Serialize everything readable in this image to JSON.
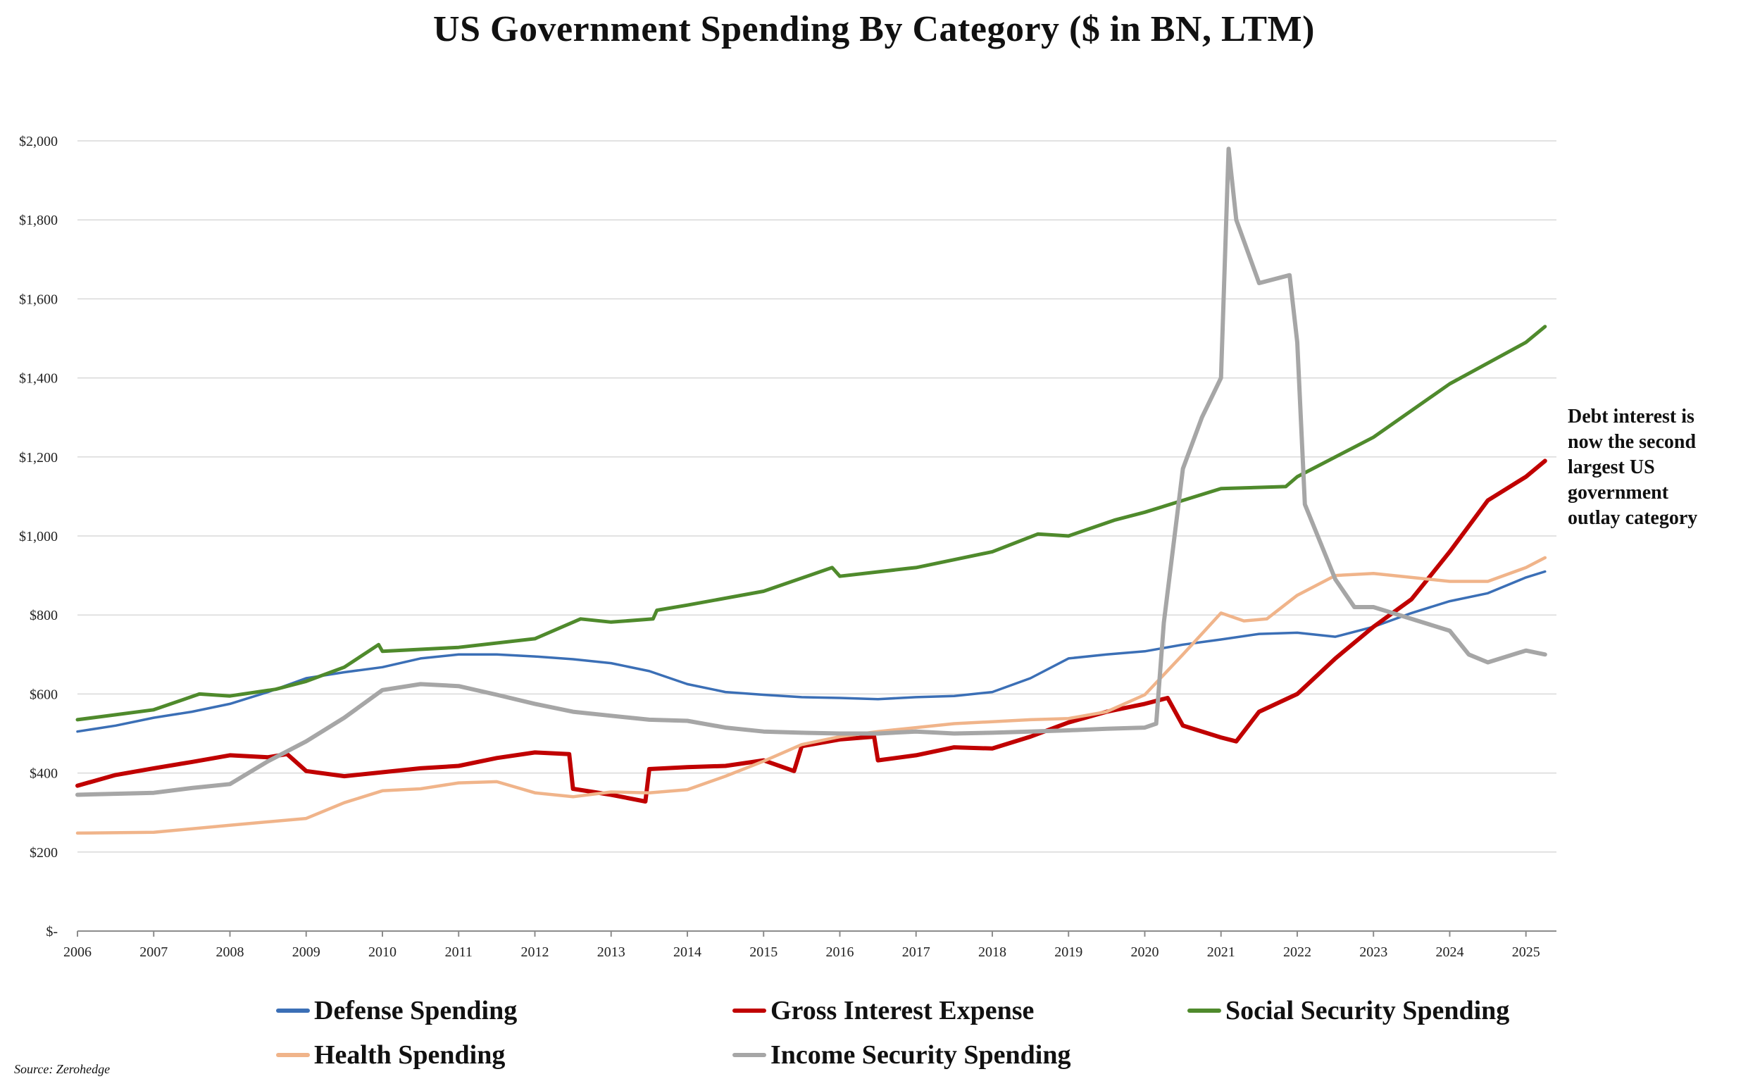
{
  "title": "US Government Spending By Category ($ in BN, LTM)",
  "annotation": [
    "Debt interest is",
    "now the second",
    "largest US",
    "government",
    "outlay category"
  ],
  "source": "Source: Zerohedge",
  "legend": [
    {
      "label": "Defense Spending",
      "color": "#3b6fb6"
    },
    {
      "label": "Gross Interest Expense",
      "color": "#c00000"
    },
    {
      "label": "Social Security Spending",
      "color": "#4f8a2c"
    },
    {
      "label": "Health Spending",
      "color": "#f0b48a"
    },
    {
      "label": "Income Security Spending",
      "color": "#a6a6a6"
    }
  ],
  "chart_data": {
    "type": "line",
    "title": "US Government Spending By Category ($ in BN, LTM)",
    "xlabel": "",
    "ylabel": "",
    "xlim": [
      2006,
      2025.4
    ],
    "ylim": [
      0,
      2000
    ],
    "y_ticks": [
      0,
      200,
      400,
      600,
      800,
      1000,
      1200,
      1400,
      1600,
      1800,
      2000
    ],
    "y_tick_labels": [
      "$-",
      "$200",
      "$400",
      "$600",
      "$800",
      "$1,000",
      "$1,200",
      "$1,400",
      "$1,600",
      "$1,800",
      "$2,000"
    ],
    "x_ticks": [
      2006,
      2007,
      2008,
      2009,
      2010,
      2011,
      2012,
      2013,
      2014,
      2015,
      2016,
      2017,
      2018,
      2019,
      2020,
      2021,
      2022,
      2023,
      2024,
      2025
    ],
    "x_tick_labels": [
      "2006",
      "2007",
      "2008",
      "2009",
      "2010",
      "2011",
      "2012",
      "2013",
      "2014",
      "2015",
      "2016",
      "2017",
      "2018",
      "2019",
      "2020",
      "2021",
      "2022",
      "2023",
      "2024",
      "2025"
    ],
    "grid": "horizontal",
    "legend_position": "bottom",
    "series": [
      {
        "name": "Defense Spending",
        "color": "#3b6fb6",
        "x": [
          2006,
          2006.5,
          2007,
          2007.5,
          2008,
          2008.5,
          2009,
          2009.5,
          2010,
          2010.5,
          2011,
          2011.5,
          2012,
          2012.5,
          2013,
          2013.5,
          2014,
          2014.5,
          2015,
          2015.5,
          2016,
          2016.5,
          2017,
          2017.5,
          2018,
          2018.5,
          2019,
          2019.5,
          2020,
          2020.5,
          2021,
          2021.5,
          2022,
          2022.5,
          2023,
          2023.5,
          2024,
          2024.5,
          2025,
          2025.25
        ],
        "y": [
          505,
          520,
          540,
          555,
          575,
          605,
          640,
          655,
          668,
          690,
          700,
          700,
          695,
          688,
          678,
          658,
          625,
          605,
          598,
          592,
          590,
          587,
          592,
          595,
          605,
          640,
          690,
          700,
          708,
          725,
          738,
          752,
          755,
          745,
          770,
          805,
          835,
          855,
          895,
          910
        ]
      },
      {
        "name": "Gross Interest Expense",
        "color": "#c00000",
        "x": [
          2006,
          2006.5,
          2007,
          2007.5,
          2008,
          2008.5,
          2008.75,
          2009,
          2009.5,
          2010,
          2010.5,
          2011,
          2011.5,
          2012,
          2012.45,
          2012.5,
          2013,
          2013.45,
          2013.5,
          2014,
          2014.5,
          2015,
          2015.4,
          2015.5,
          2016,
          2016.45,
          2016.5,
          2017,
          2017.5,
          2018,
          2018.5,
          2019,
          2019.5,
          2020,
          2020.3,
          2020.5,
          2021,
          2021.2,
          2021.5,
          2022,
          2022.5,
          2023,
          2023.5,
          2024,
          2024.5,
          2025,
          2025.25
        ],
        "y": [
          368,
          395,
          412,
          428,
          445,
          440,
          448,
          405,
          392,
          402,
          412,
          418,
          438,
          452,
          448,
          360,
          345,
          328,
          410,
          415,
          418,
          432,
          405,
          468,
          485,
          492,
          432,
          445,
          465,
          462,
          492,
          528,
          555,
          575,
          590,
          520,
          490,
          480,
          555,
          600,
          690,
          770,
          840,
          960,
          1090,
          1150,
          1190
        ]
      },
      {
        "name": "Social Security Spending",
        "color": "#4f8a2c",
        "x": [
          2006,
          2007,
          2007.6,
          2008,
          2008.6,
          2009,
          2009.5,
          2009.95,
          2010,
          2011,
          2012,
          2012.6,
          2013,
          2013.55,
          2013.6,
          2014,
          2015,
          2015.9,
          2016,
          2016.9,
          2017,
          2018,
          2018.6,
          2019,
          2019.6,
          2020,
          2021,
          2021.85,
          2022,
          2023,
          2024,
          2025,
          2025.25
        ],
        "y": [
          535,
          560,
          600,
          595,
          612,
          632,
          668,
          725,
          708,
          718,
          740,
          790,
          782,
          790,
          812,
          825,
          860,
          920,
          898,
          918,
          920,
          960,
          1005,
          1000,
          1040,
          1060,
          1120,
          1125,
          1150,
          1250,
          1385,
          1490,
          1530
        ]
      },
      {
        "name": "Health Spending",
        "color": "#f0b48a",
        "x": [
          2006,
          2007,
          2008,
          2009,
          2009.5,
          2010,
          2010.5,
          2011,
          2011.5,
          2012,
          2012.5,
          2013,
          2013.5,
          2014,
          2014.5,
          2015,
          2015.5,
          2016,
          2016.5,
          2017,
          2017.5,
          2018,
          2018.5,
          2019,
          2019.5,
          2020,
          2020.5,
          2021,
          2021.3,
          2021.6,
          2022,
          2022.5,
          2023,
          2023.5,
          2024,
          2024.5,
          2025,
          2025.25
        ],
        "y": [
          248,
          250,
          268,
          285,
          325,
          355,
          360,
          375,
          378,
          350,
          340,
          352,
          350,
          358,
          392,
          430,
          472,
          492,
          505,
          515,
          525,
          530,
          535,
          538,
          555,
          598,
          700,
          805,
          785,
          790,
          850,
          900,
          905,
          895,
          885,
          885,
          920,
          945
        ]
      },
      {
        "name": "Income Security Spending",
        "color": "#a6a6a6",
        "x": [
          2006,
          2007,
          2007.5,
          2008,
          2008.5,
          2009,
          2009.5,
          2010,
          2010.5,
          2011,
          2011.5,
          2012,
          2012.5,
          2013,
          2013.5,
          2014,
          2014.5,
          2015,
          2015.5,
          2016,
          2016.5,
          2017,
          2017.5,
          2018,
          2018.5,
          2019,
          2019.5,
          2020,
          2020.15,
          2020.25,
          2020.5,
          2020.75,
          2021,
          2021.1,
          2021.2,
          2021.5,
          2021.9,
          2022,
          2022.1,
          2022.5,
          2022.75,
          2023,
          2023.5,
          2024,
          2024.25,
          2024.5,
          2025,
          2025.25
        ],
        "y": [
          345,
          350,
          362,
          372,
          430,
          480,
          540,
          610,
          625,
          620,
          598,
          575,
          555,
          545,
          535,
          532,
          515,
          505,
          502,
          500,
          500,
          505,
          500,
          502,
          505,
          508,
          512,
          515,
          525,
          780,
          1170,
          1300,
          1400,
          1980,
          1800,
          1640,
          1660,
          1490,
          1080,
          890,
          820,
          820,
          790,
          760,
          700,
          680,
          710,
          700
        ]
      }
    ]
  }
}
